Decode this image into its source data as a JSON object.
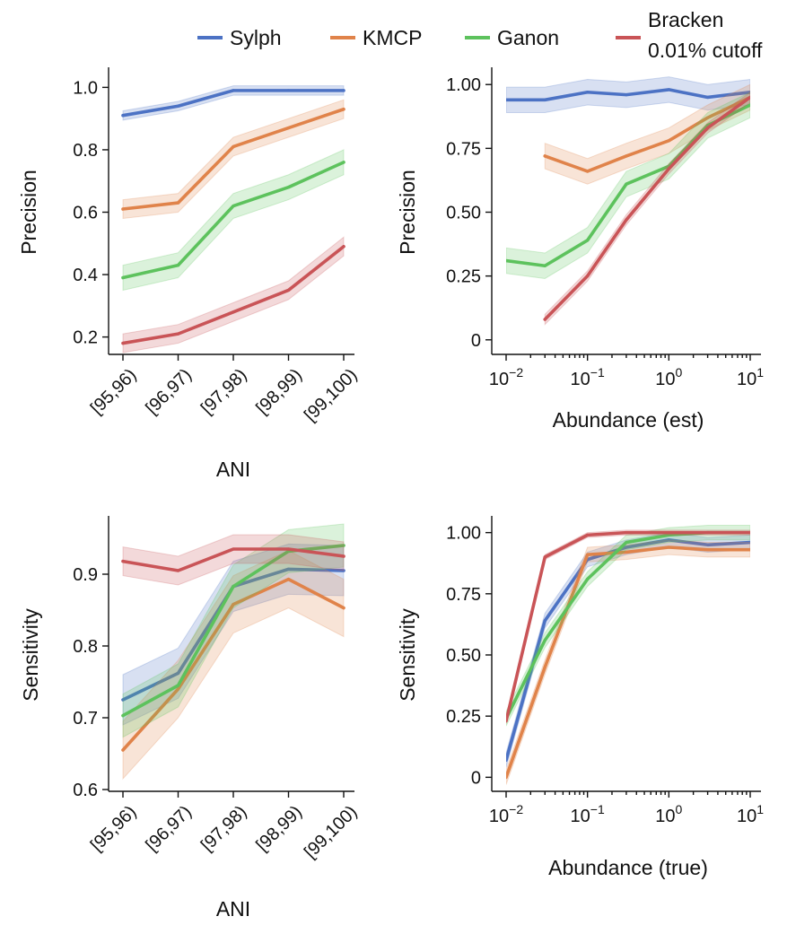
{
  "colors": {
    "Sylph": "#4C72C4",
    "KMCP": "#E0834A",
    "Ganon": "#5DC25D",
    "Bracken": "#C95457"
  },
  "legend": [
    {
      "key": "Sylph",
      "label": "Sylph"
    },
    {
      "key": "KMCP",
      "label": "KMCP"
    },
    {
      "key": "Ganon",
      "label": "Ganon"
    },
    {
      "key": "Bracken",
      "label": "Bracken",
      "label2": "0.01% cutoff"
    }
  ],
  "chart_data": [
    {
      "type": "line",
      "ylabel": "Precision",
      "xlabel": "ANI",
      "categories": [
        "[95,96)",
        "[96,97)",
        "[97,98)",
        "[98,99)",
        "[99,100)"
      ],
      "ylim": [
        0.15,
        1.05
      ],
      "yticks": [
        0.2,
        0.4,
        0.6,
        0.8,
        1.0
      ],
      "ytick_labels": [
        "0.2",
        "0.4",
        "0.6",
        "0.8",
        "1.0"
      ],
      "series": [
        {
          "name": "Sylph",
          "values": [
            0.91,
            0.94,
            0.99,
            0.99,
            0.99
          ],
          "band": 0.015
        },
        {
          "name": "KMCP",
          "values": [
            0.61,
            0.63,
            0.81,
            0.87,
            0.93
          ],
          "band": 0.03
        },
        {
          "name": "Ganon",
          "values": [
            0.39,
            0.43,
            0.62,
            0.68,
            0.76
          ],
          "band": 0.04
        },
        {
          "name": "Bracken",
          "values": [
            0.18,
            0.21,
            0.28,
            0.35,
            0.49
          ],
          "band": 0.03
        }
      ]
    },
    {
      "type": "line",
      "ylabel": "Precision",
      "xlabel": "Abundance (est)",
      "xscale": "log",
      "xlim": [
        0.01,
        10
      ],
      "ylim": [
        -0.05,
        1.05
      ],
      "yticks": [
        0,
        0.25,
        0.5,
        0.75,
        1.0
      ],
      "ytick_labels": [
        "0",
        "0.25",
        "0.50",
        "0.75",
        "1.00"
      ],
      "xtick_exps": [
        "−2",
        "−1",
        "0",
        "1"
      ],
      "series": [
        {
          "name": "Sylph",
          "x": [
            0.01,
            0.03,
            0.1,
            0.3,
            1,
            3,
            10
          ],
          "values": [
            0.94,
            0.94,
            0.97,
            0.96,
            0.98,
            0.95,
            0.97
          ],
          "band": 0.05
        },
        {
          "name": "KMCP",
          "x": [
            0.03,
            0.1,
            0.3,
            1,
            3,
            10
          ],
          "values": [
            0.72,
            0.66,
            0.72,
            0.78,
            0.87,
            0.95
          ],
          "band": 0.05
        },
        {
          "name": "Ganon",
          "x": [
            0.01,
            0.03,
            0.1,
            0.3,
            1,
            3,
            10
          ],
          "values": [
            0.31,
            0.29,
            0.39,
            0.61,
            0.68,
            0.84,
            0.92
          ],
          "band": 0.05
        },
        {
          "name": "Bracken",
          "x": [
            0.03,
            0.1,
            0.3,
            1,
            3,
            10
          ],
          "values": [
            0.08,
            0.25,
            0.47,
            0.67,
            0.83,
            0.95
          ],
          "band": 0.02
        }
      ]
    },
    {
      "type": "line",
      "ylabel": "Sensitivity",
      "xlabel": "ANI",
      "categories": [
        "[95,96)",
        "[96,97)",
        "[97,98)",
        "[98,99)",
        "[99,100)"
      ],
      "ylim": [
        0.6,
        0.975
      ],
      "yticks": [
        0.6,
        0.7,
        0.8,
        0.9
      ],
      "ytick_labels": [
        "0.6",
        "0.7",
        "0.8",
        "0.9"
      ],
      "series": [
        {
          "name": "Sylph",
          "values": [
            0.725,
            0.762,
            0.883,
            0.907,
            0.905
          ],
          "band": 0.035
        },
        {
          "name": "KMCP",
          "values": [
            0.655,
            0.74,
            0.858,
            0.893,
            0.853
          ],
          "band": 0.04
        },
        {
          "name": "Ganon",
          "values": [
            0.703,
            0.745,
            0.883,
            0.932,
            0.94
          ],
          "band": 0.03
        },
        {
          "name": "Bracken",
          "values": [
            0.918,
            0.905,
            0.935,
            0.935,
            0.925
          ],
          "band": 0.02
        }
      ]
    },
    {
      "type": "line",
      "ylabel": "Sensitivity",
      "xlabel": "Abundance (true)",
      "xscale": "log",
      "xlim": [
        0.01,
        10
      ],
      "ylim": [
        -0.05,
        1.05
      ],
      "yticks": [
        0,
        0.25,
        0.5,
        0.75,
        1.0
      ],
      "ytick_labels": [
        "0",
        "0.25",
        "0.50",
        "0.75",
        "1.00"
      ],
      "xtick_exps": [
        "−2",
        "−1",
        "0",
        "1"
      ],
      "series": [
        {
          "name": "Sylph",
          "x": [
            0.01,
            0.03,
            0.1,
            0.3,
            1,
            3,
            10
          ],
          "values": [
            0.07,
            0.64,
            0.89,
            0.94,
            0.97,
            0.95,
            0.96
          ],
          "band": 0.03
        },
        {
          "name": "KMCP",
          "x": [
            0.01,
            0.03,
            0.1,
            0.3,
            1,
            3,
            10
          ],
          "values": [
            0.0,
            0.45,
            0.91,
            0.92,
            0.94,
            0.93,
            0.93
          ],
          "band": 0.03
        },
        {
          "name": "Ganon",
          "x": [
            0.01,
            0.03,
            0.1,
            0.3,
            1,
            3,
            10
          ],
          "values": [
            0.24,
            0.56,
            0.81,
            0.96,
            0.99,
            1.0,
            1.0
          ],
          "band": 0.03
        },
        {
          "name": "Bracken",
          "x": [
            0.01,
            0.03,
            0.1,
            0.3,
            1,
            3,
            10
          ],
          "values": [
            0.23,
            0.9,
            0.99,
            1.0,
            1.0,
            1.0,
            1.0
          ],
          "band": 0.01
        }
      ]
    }
  ]
}
